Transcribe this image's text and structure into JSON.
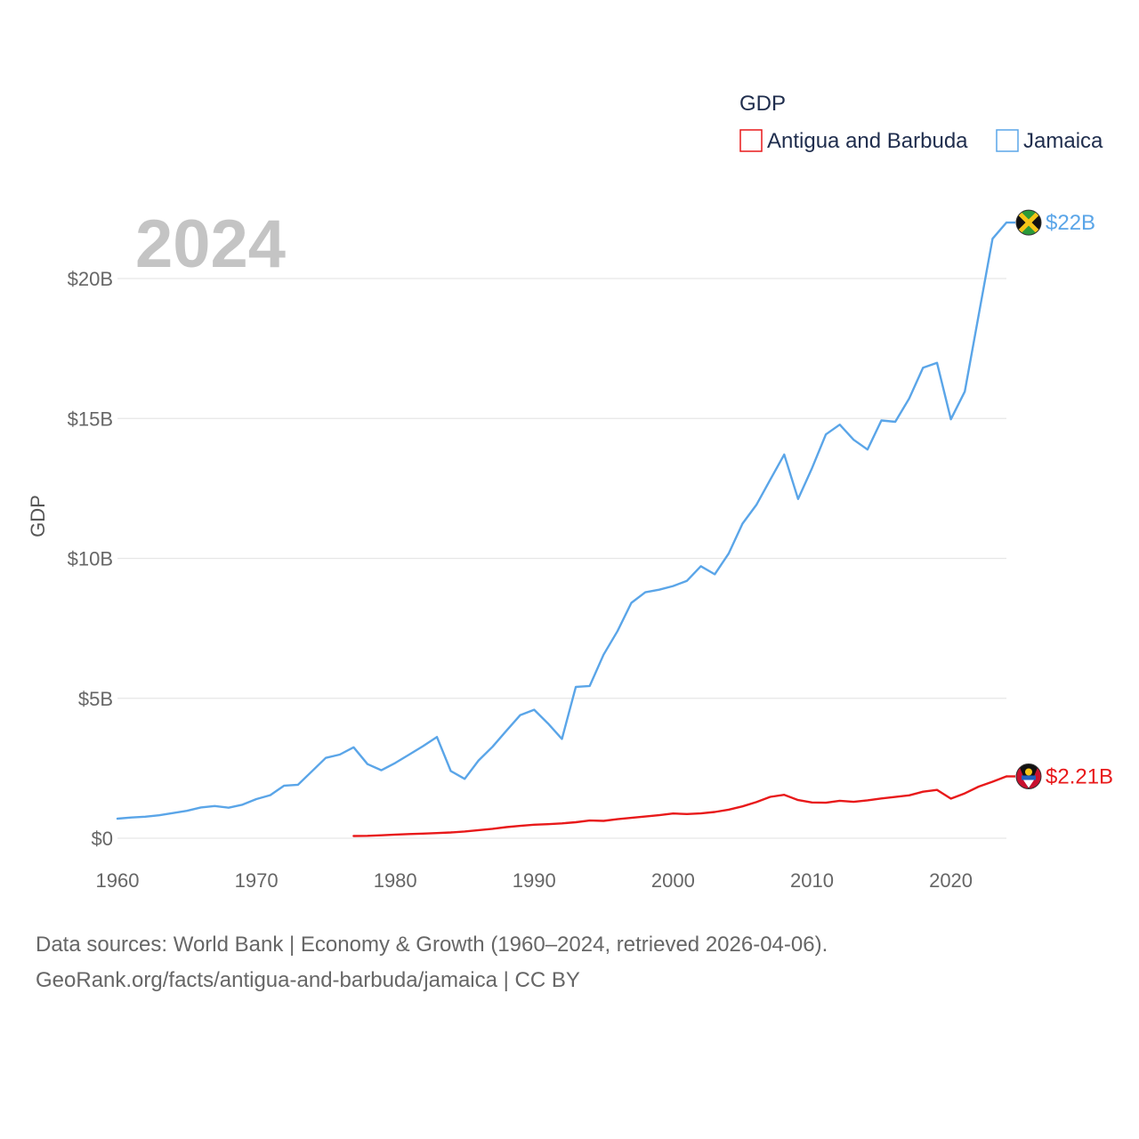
{
  "chart_data": {
    "type": "line",
    "current_year_label": "2024",
    "ylabel": "GDP",
    "xlim": [
      1960,
      2024
    ],
    "ylim": [
      0,
      20000000000
    ],
    "x_ticks": [
      1960,
      1970,
      1980,
      1990,
      2000,
      2010,
      2020
    ],
    "x_tick_labels": [
      "1960",
      "1970",
      "1980",
      "1990",
      "2000",
      "2010",
      "2020"
    ],
    "y_ticks": [
      0,
      5000000000,
      10000000000,
      15000000000,
      20000000000
    ],
    "y_tick_labels": [
      "$0",
      "$5B",
      "$10B",
      "$15B",
      "$20B"
    ],
    "grid": true,
    "legend": {
      "title": "GDP",
      "position": "top-right",
      "items": [
        {
          "label": "Antigua and Barbuda",
          "color": "#e8191a"
        },
        {
          "label": "Jamaica",
          "color": "#5aa5e8"
        }
      ]
    },
    "series": [
      {
        "name": "Jamaica",
        "color": "#5aa5e8",
        "end_label": "$22B",
        "flag_icon": "jamaica-flag-icon",
        "x": [
          1960,
          1961,
          1962,
          1963,
          1964,
          1965,
          1966,
          1967,
          1968,
          1969,
          1970,
          1971,
          1972,
          1973,
          1974,
          1975,
          1976,
          1977,
          1978,
          1979,
          1980,
          1981,
          1982,
          1983,
          1984,
          1985,
          1986,
          1987,
          1988,
          1989,
          1990,
          1991,
          1992,
          1993,
          1994,
          1995,
          1996,
          1997,
          1998,
          1999,
          2000,
          2001,
          2002,
          2003,
          2004,
          2005,
          2006,
          2007,
          2008,
          2009,
          2010,
          2011,
          2012,
          2013,
          2014,
          2015,
          2016,
          2017,
          2018,
          2019,
          2020,
          2021,
          2022,
          2023,
          2024
        ],
        "values": [
          700000000,
          740000000,
          770000000,
          820000000,
          900000000,
          980000000,
          1100000000,
          1150000000,
          1090000000,
          1200000000,
          1400000000,
          1540000000,
          1880000000,
          1910000000,
          2390000000,
          2870000000,
          2990000000,
          3250000000,
          2650000000,
          2430000000,
          2690000000,
          2990000000,
          3290000000,
          3620000000,
          2400000000,
          2120000000,
          2780000000,
          3270000000,
          3840000000,
          4400000000,
          4590000000,
          4100000000,
          3550000000,
          5410000000,
          5440000000,
          6560000000,
          7400000000,
          8410000000,
          8790000000,
          8880000000,
          9010000000,
          9200000000,
          9720000000,
          9430000000,
          10170000000,
          11240000000,
          11910000000,
          12810000000,
          13710000000,
          12120000000,
          13220000000,
          14430000000,
          14780000000,
          14240000000,
          13890000000,
          14930000000,
          14880000000,
          15710000000,
          16810000000,
          16990000000,
          14970000000,
          15960000000,
          18690000000,
          21420000000,
          22000000000
        ]
      },
      {
        "name": "Antigua and Barbuda",
        "color": "#e8191a",
        "end_label": "$2.21B",
        "flag_icon": "antigua-and-barbuda-flag-icon",
        "x": [
          1977,
          1978,
          1979,
          1980,
          1981,
          1982,
          1983,
          1984,
          1985,
          1986,
          1987,
          1988,
          1989,
          1990,
          1991,
          1992,
          1993,
          1994,
          1995,
          1996,
          1997,
          1998,
          1999,
          2000,
          2001,
          2002,
          2003,
          2004,
          2005,
          2006,
          2007,
          2008,
          2009,
          2010,
          2011,
          2012,
          2013,
          2014,
          2015,
          2016,
          2017,
          2018,
          2019,
          2020,
          2021,
          2022,
          2023,
          2024
        ],
        "values": [
          78000000,
          87000000,
          106000000,
          131000000,
          148000000,
          164000000,
          183000000,
          208000000,
          241000000,
          290000000,
          338000000,
          398000000,
          443000000,
          482000000,
          501000000,
          531000000,
          572000000,
          632000000,
          620000000,
          680000000,
          728000000,
          776000000,
          822000000,
          883000000,
          866000000,
          887000000,
          939000000,
          1021000000,
          1137000000,
          1292000000,
          1478000000,
          1553000000,
          1365000000,
          1278000000,
          1270000000,
          1338000000,
          1301000000,
          1355000000,
          1422000000,
          1476000000,
          1532000000,
          1662000000,
          1726000000,
          1414000000,
          1601000000,
          1844000000,
          2020000000,
          2210000000
        ]
      }
    ]
  },
  "footer": {
    "line1": "Data sources: World Bank | Economy & Growth (1960–2024, retrieved 2026-04-06).",
    "line2": "GeoRank.org/facts/antigua-and-barbuda/jamaica | CC BY"
  }
}
